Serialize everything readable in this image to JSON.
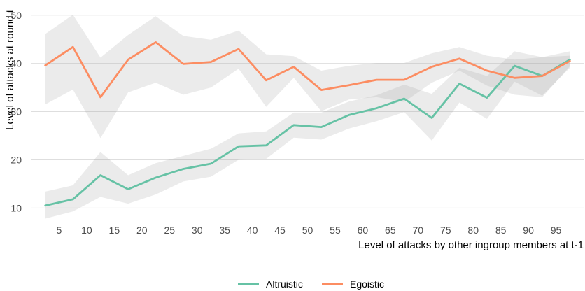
{
  "chart_data": {
    "type": "line",
    "xlabel": "Level of attacks by other ingroup members at t-1",
    "ylabel": "Level of attacks at round t",
    "xlim": [
      0,
      100
    ],
    "ylim": [
      7,
      52
    ],
    "xticks": [
      5,
      10,
      15,
      20,
      25,
      30,
      35,
      40,
      45,
      50,
      55,
      60,
      65,
      70,
      75,
      80,
      85,
      90,
      95
    ],
    "yticks": [
      10,
      20,
      30,
      40,
      50
    ],
    "grid": "horizontal",
    "legend_position": "bottom",
    "x": [
      2.5,
      7.5,
      12.5,
      17.5,
      22.5,
      27.5,
      32.5,
      37.5,
      42.5,
      47.5,
      52.5,
      57.5,
      62.5,
      67.5,
      72.5,
      77.5,
      82.5,
      87.5,
      92.5,
      97.5
    ],
    "series": [
      {
        "name": "Altruistic",
        "color": "#66c2a5",
        "values": [
          10.5,
          11.8,
          16.8,
          13.9,
          16.3,
          18.1,
          19.2,
          22.8,
          23.0,
          27.2,
          26.8,
          29.3,
          30.7,
          32.7,
          28.7,
          35.8,
          32.9,
          39.5,
          37.4,
          40.8
        ],
        "lower": [
          7.8,
          9.3,
          12.3,
          10.9,
          12.8,
          15.5,
          16.5,
          20.0,
          20.2,
          24.6,
          24.2,
          26.5,
          28.0,
          29.9,
          24.0,
          31.9,
          28.5,
          36.2,
          33.3,
          39.1
        ],
        "upper": [
          13.4,
          14.7,
          21.6,
          16.8,
          19.3,
          20.8,
          22.3,
          25.5,
          25.9,
          29.8,
          29.8,
          32.1,
          33.4,
          35.6,
          33.7,
          39.1,
          37.4,
          42.5,
          41.3,
          42.5
        ]
      },
      {
        "name": "Egoistic",
        "color": "#fc8d62",
        "values": [
          39.6,
          43.4,
          33.0,
          40.8,
          44.4,
          39.9,
          40.3,
          43.0,
          36.5,
          39.3,
          34.5,
          35.5,
          36.6,
          36.6,
          39.3,
          41.0,
          38.5,
          37.0,
          37.4,
          40.5
        ],
        "lower": [
          31.5,
          34.6,
          24.5,
          34.0,
          36.0,
          33.5,
          35.0,
          38.9,
          31.0,
          37.0,
          30.1,
          32.5,
          33.0,
          32.0,
          36.0,
          38.5,
          35.4,
          33.5,
          33.0,
          39.4
        ],
        "upper": [
          46.1,
          50.1,
          41.2,
          45.9,
          49.8,
          45.7,
          44.9,
          46.8,
          41.9,
          41.5,
          38.5,
          39.5,
          40.1,
          40.1,
          42.1,
          43.4,
          41.6,
          40.8,
          41.3,
          41.6
        ]
      }
    ]
  }
}
